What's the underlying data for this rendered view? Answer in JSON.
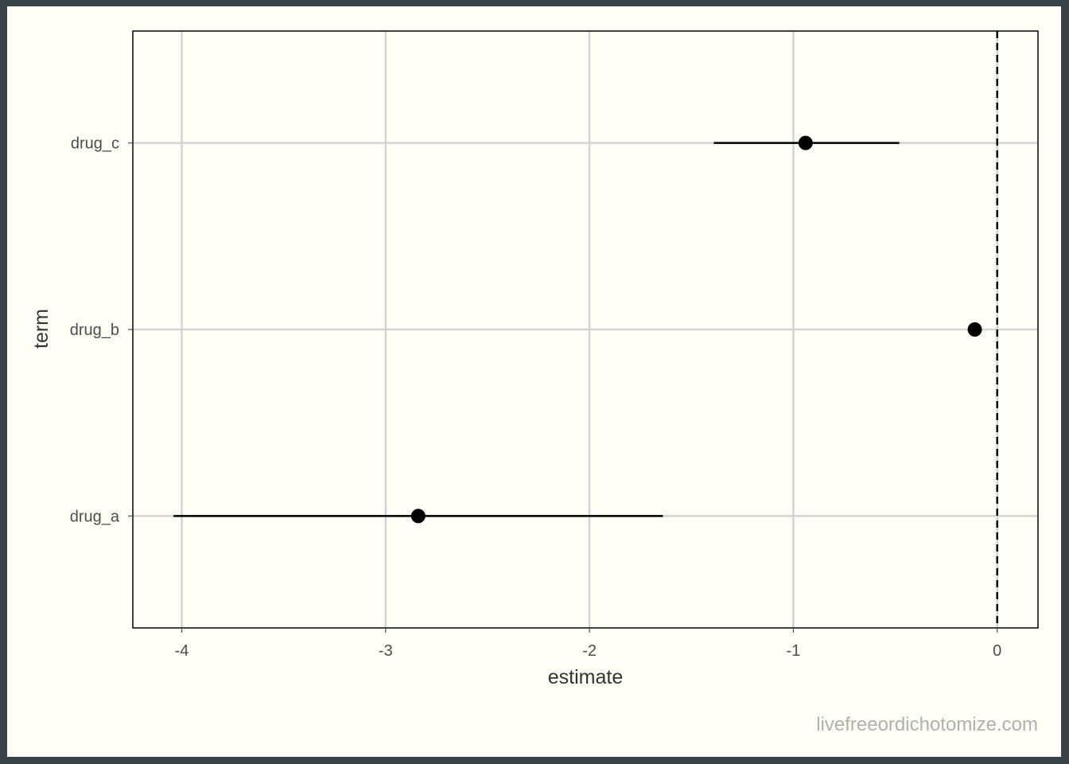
{
  "chart_data": {
    "type": "scatter",
    "subtype": "coefficient-plot",
    "title": "",
    "xlabel": "estimate",
    "ylabel": "term",
    "xlim": [
      -4.24,
      0.2
    ],
    "x_ticks": [
      -4,
      -3,
      -2,
      -1,
      0
    ],
    "x_tick_labels": [
      "-4",
      "-3",
      "-2",
      "-1",
      "0"
    ],
    "categories": [
      "drug_a",
      "drug_b",
      "drug_c"
    ],
    "points": [
      {
        "term": "drug_a",
        "estimate": -2.84,
        "conf_low": -4.04,
        "conf_high": -1.64
      },
      {
        "term": "drug_b",
        "estimate": -0.11,
        "conf_low": -0.11,
        "conf_high": -0.11
      },
      {
        "term": "drug_c",
        "estimate": -0.94,
        "conf_low": -1.39,
        "conf_high": -0.48
      }
    ],
    "reference_line": {
      "x": 0,
      "style": "dashed"
    },
    "grid": true,
    "legend": "none"
  },
  "watermark": "livefreeordichotomize.com",
  "colors": {
    "background": "#fefef7",
    "outer_border": "#3a4347",
    "grid": "#d3d3d3",
    "marks": "#000000",
    "axis_text": "#4d4d4d",
    "watermark": "#b0b0b0"
  }
}
